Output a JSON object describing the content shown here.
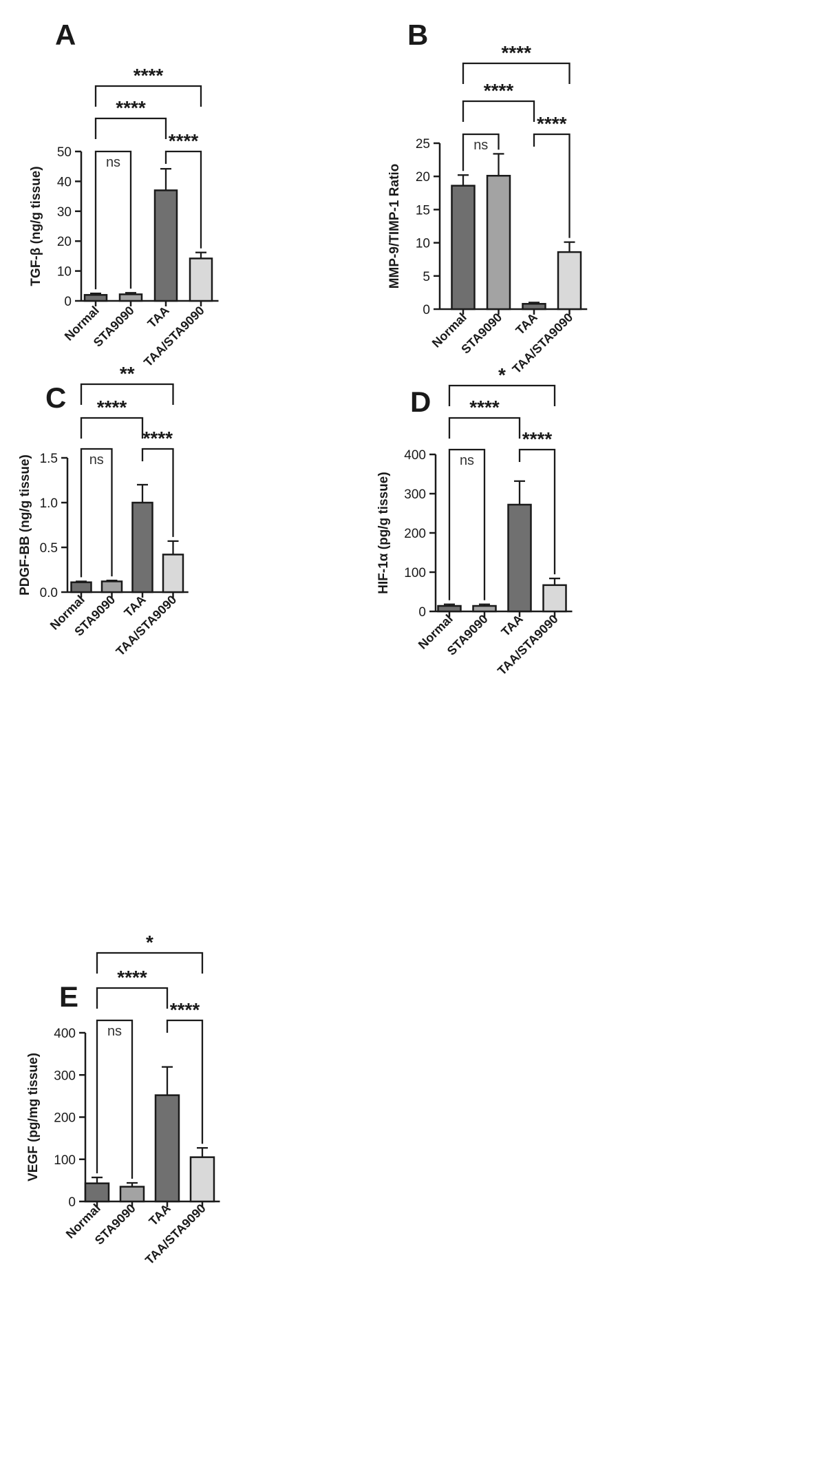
{
  "colors": {
    "Normal": "#6f6f6f",
    "STA9090": "#a3a3a3",
    "TAA": "#707070",
    "TAA/STA9090": "#d9d9d9"
  },
  "chart_data": [
    {
      "id": "A",
      "panel": "A",
      "type": "bar",
      "categories": [
        "Normal",
        "STA9090",
        "TAA",
        "TAA/STA9090"
      ],
      "values": [
        2,
        2.2,
        37,
        14.2
      ],
      "errors": [
        0.5,
        0.5,
        7.2,
        2
      ],
      "ylabel": "TGF-β (ng/g tissue)",
      "ylim": [
        0,
        50
      ],
      "yticks": [
        0,
        10,
        20,
        30,
        40,
        50
      ],
      "yticklabels": [
        "0",
        "10",
        "20",
        "30",
        "40",
        "50"
      ],
      "comparisons": [
        {
          "from": "Normal",
          "to": "STA9090",
          "label": "ns"
        },
        {
          "from": "TAA",
          "to": "TAA/STA9090",
          "label": "****"
        },
        {
          "from": "Normal",
          "to": "TAA",
          "label": "****"
        },
        {
          "from": "Normal",
          "to": "TAA/STA9090",
          "label": "****"
        }
      ]
    },
    {
      "id": "B",
      "panel": "B",
      "type": "bar",
      "categories": [
        "Normal",
        "STA9090",
        "TAA",
        "TAA/STA9090"
      ],
      "values": [
        18.6,
        20.1,
        0.8,
        8.6
      ],
      "errors": [
        1.6,
        3.3,
        0.2,
        1.5
      ],
      "ylabel": "MMP-9/TIMP-1 Ratio",
      "ylim": [
        0,
        25
      ],
      "yticks": [
        0,
        5,
        10,
        15,
        20,
        25
      ],
      "yticklabels": [
        "0",
        "5",
        "10",
        "15",
        "20",
        "25"
      ],
      "comparisons": [
        {
          "from": "Normal",
          "to": "STA9090",
          "label": "ns"
        },
        {
          "from": "TAA",
          "to": "TAA/STA9090",
          "label": "****"
        },
        {
          "from": "Normal",
          "to": "TAA",
          "label": "****"
        },
        {
          "from": "Normal",
          "to": "TAA/STA9090",
          "label": "****"
        }
      ]
    },
    {
      "id": "C",
      "panel": "C",
      "type": "bar",
      "categories": [
        "Normal",
        "STA9090",
        "TAA",
        "TAA/STA9090"
      ],
      "values": [
        0.11,
        0.12,
        1.0,
        0.42
      ],
      "errors": [
        0.01,
        0.01,
        0.2,
        0.15
      ],
      "ylabel": "PDGF-BB (ng/g tissue)",
      "ylim": [
        0,
        1.5
      ],
      "yticks": [
        0,
        0.5,
        1.0,
        1.5
      ],
      "yticklabels": [
        "0.0",
        "0.5",
        "1.0",
        "1.5"
      ],
      "comparisons": [
        {
          "from": "Normal",
          "to": "STA9090",
          "label": "ns"
        },
        {
          "from": "TAA",
          "to": "TAA/STA9090",
          "label": "****"
        },
        {
          "from": "Normal",
          "to": "TAA",
          "label": "****"
        },
        {
          "from": "Normal",
          "to": "TAA/STA9090",
          "label": "**"
        }
      ]
    },
    {
      "id": "D",
      "panel": "D",
      "type": "bar",
      "categories": [
        "Normal",
        "STA9090",
        "TAA",
        "TAA/STA9090"
      ],
      "values": [
        14,
        14,
        272,
        67
      ],
      "errors": [
        4,
        4,
        60,
        17
      ],
      "ylabel": "HIF-1α (pg/g tissue)",
      "ylim": [
        0,
        400
      ],
      "yticks": [
        0,
        100,
        200,
        300,
        400
      ],
      "yticklabels": [
        "0",
        "100",
        "200",
        "300",
        "400"
      ],
      "comparisons": [
        {
          "from": "Normal",
          "to": "STA9090",
          "label": "ns"
        },
        {
          "from": "TAA",
          "to": "TAA/STA9090",
          "label": "****"
        },
        {
          "from": "Normal",
          "to": "TAA",
          "label": "****"
        },
        {
          "from": "Normal",
          "to": "TAA/STA9090",
          "label": "*"
        }
      ]
    },
    {
      "id": "E",
      "panel": "E",
      "type": "bar",
      "categories": [
        "Normal",
        "STA9090",
        "TAA",
        "TAA/STA9090"
      ],
      "values": [
        43,
        35,
        252,
        105
      ],
      "errors": [
        14,
        9,
        67,
        22
      ],
      "ylabel": "VEGF (pg/mg tissue)",
      "ylim": [
        0,
        400
      ],
      "yticks": [
        0,
        100,
        200,
        300,
        400
      ],
      "yticklabels": [
        "0",
        "100",
        "200",
        "300",
        "400"
      ],
      "comparisons": [
        {
          "from": "Normal",
          "to": "STA9090",
          "label": "ns"
        },
        {
          "from": "TAA",
          "to": "TAA/STA9090",
          "label": "****"
        },
        {
          "from": "Normal",
          "to": "TAA",
          "label": "****"
        },
        {
          "from": "Normal",
          "to": "TAA/STA9090",
          "label": "*"
        }
      ]
    }
  ]
}
